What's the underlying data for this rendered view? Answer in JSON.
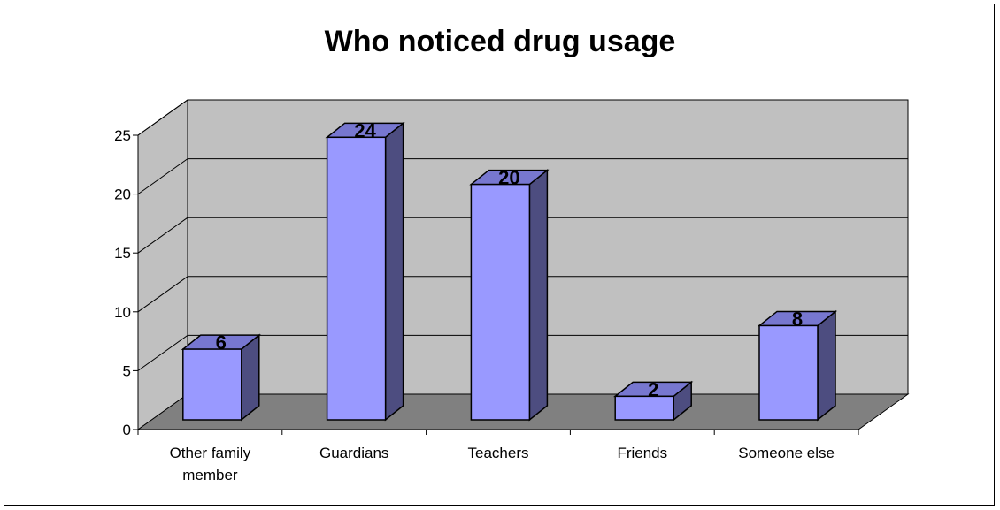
{
  "chart_data": {
    "type": "bar",
    "title": "Who noticed drug usage",
    "categories": [
      "Other family member",
      "Guardians",
      "Teachers",
      "Friends",
      "Someone else"
    ],
    "category_lines": [
      [
        "Other family",
        "member"
      ],
      [
        "Guardians"
      ],
      [
        "Teachers"
      ],
      [
        "Friends"
      ],
      [
        "Someone else"
      ]
    ],
    "values": [
      6,
      24,
      20,
      2,
      8
    ],
    "data_labels": [
      "6",
      "24",
      "20",
      "2",
      "8"
    ],
    "ylim": [
      0,
      25
    ],
    "yticks": [
      0,
      5,
      10,
      15,
      20,
      25
    ],
    "grid": true,
    "legend": "none",
    "style": "3d-column",
    "colors": {
      "bar_front": "#9999ff",
      "bar_side": "#4d4d80",
      "bar_top": "#7777d0",
      "back_wall": "#c0c0c0",
      "floor": "#808080",
      "left_wall": "#c0c0c0"
    }
  }
}
